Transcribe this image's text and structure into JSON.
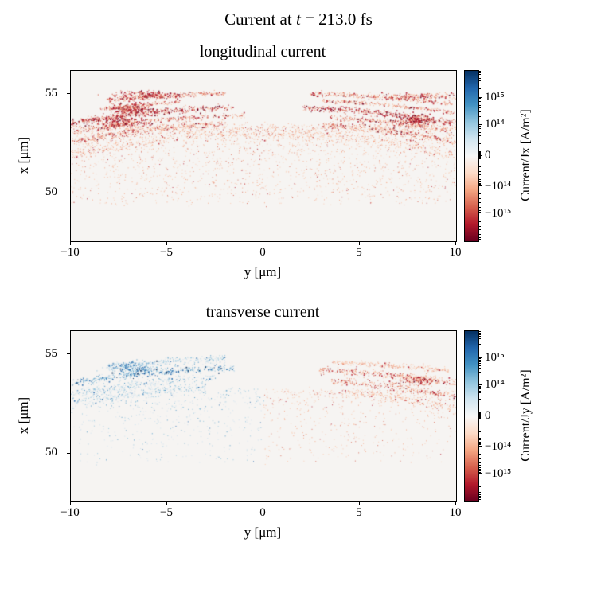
{
  "figure": {
    "title": {
      "pre": "Current at ",
      "var": "t",
      "post": " = 213.0 fs"
    },
    "background": "#ffffff"
  },
  "palettes": {
    "red": [
      "#fbc9ae",
      "#f4a582",
      "#d6604d",
      "#b2182b",
      "#67001f"
    ],
    "blue": [
      "#cfe3f0",
      "#92c5de",
      "#4393c3",
      "#2166ac",
      "#053061"
    ],
    "shadeWeights": {
      "light": [
        0.5,
        0.34,
        0.12,
        0.04,
        0
      ],
      "mid": [
        0.2,
        0.34,
        0.28,
        0.15,
        0.03
      ],
      "dark": [
        0.07,
        0.2,
        0.33,
        0.3,
        0.1
      ]
    }
  },
  "chart_data": [
    {
      "type": "scatter",
      "title": "longitudinal current",
      "xlabel": "y [μm]",
      "ylabel": "x [μm]",
      "xlim": [
        -10,
        10
      ],
      "ylim": [
        47.6,
        56.2
      ],
      "xticks": [
        -10,
        -5,
        0,
        5,
        10
      ],
      "xtick_labels": [
        "−10",
        "−5",
        "0",
        "5",
        "10"
      ],
      "yticks": [
        55,
        50
      ],
      "ytick_labels": [
        "55",
        "50"
      ],
      "plot_bg": "#f6f4f2",
      "grid": false,
      "colorbar": {
        "label": "Current/Jx [A/m²]",
        "scale": "symlog",
        "linthresh": 10000000000000.0,
        "vmax": 1e+16,
        "tick_values": [
          1000000000000000.0,
          100000000000000.0,
          0,
          -100000000000000.0,
          -1000000000000000.0
        ],
        "tick_labels": [
          "10¹⁵",
          "10¹⁴",
          "0",
          "−10¹⁴",
          "−10¹⁵"
        ],
        "cmap": [
          "#053061",
          "#2166ac",
          "#4393c3",
          "#92c5de",
          "#d1e5f0",
          "#f7f7f7",
          "#fddbc7",
          "#f4a582",
          "#d6604d",
          "#b2182b",
          "#67001f"
        ]
      },
      "features": [
        {
          "type": "band",
          "v0": 55.1,
          "curv": 0.55,
          "sigma": 0.06,
          "n": 650,
          "segs": [
            [
              -8.2,
              -2.0
            ],
            [
              2.4,
              9.8
            ]
          ],
          "shade": "mid",
          "palette": "red"
        },
        {
          "type": "band",
          "v0": 54.78,
          "curv": 0.7,
          "sigma": 0.05,
          "n": 400,
          "segs": [
            [
              -8.5,
              -4.3
            ],
            [
              3.0,
              9.9
            ]
          ],
          "shade": "mid",
          "palette": "red"
        },
        {
          "type": "band",
          "v0": 54.38,
          "curv": 0.8,
          "sigma": 0.08,
          "n": 850,
          "segs": [
            [
              -10,
              -1.6
            ],
            [
              2.0,
              10
            ]
          ],
          "shade": "dark",
          "palette": "red"
        },
        {
          "type": "band",
          "v0": 53.98,
          "curv": 0.85,
          "sigma": 0.07,
          "n": 550,
          "segs": [
            [
              -10,
              -1.0
            ],
            [
              3.4,
              10
            ]
          ],
          "shade": "mid",
          "palette": "red"
        },
        {
          "type": "band",
          "v0": 53.58,
          "curv": 0.95,
          "sigma": 0.1,
          "n": 750,
          "segs": [
            [
              -10,
              -2.0
            ],
            [
              3.0,
              10
            ]
          ],
          "shade": "mid",
          "palette": "red"
        },
        {
          "type": "band",
          "v0": 53.05,
          "curv": 1.1,
          "sigma": 0.16,
          "n": 600,
          "segs": [
            [
              -10,
              10
            ]
          ],
          "shade": "light",
          "palette": "red"
        },
        {
          "type": "blob",
          "h": -6.9,
          "v": 54.32,
          "sh": 0.55,
          "sv": 0.13,
          "n": 320,
          "shade": "dark",
          "palette": "red"
        },
        {
          "type": "blob",
          "h": -7.4,
          "v": 53.62,
          "sh": 0.8,
          "sv": 0.15,
          "n": 260,
          "shade": "dark",
          "palette": "red"
        },
        {
          "type": "blob",
          "h": 7.9,
          "v": 53.72,
          "sh": 0.55,
          "sv": 0.13,
          "n": 220,
          "shade": "dark",
          "palette": "red"
        },
        {
          "type": "blob",
          "h": -6.2,
          "v": 55.02,
          "sh": 0.8,
          "sv": 0.1,
          "n": 180,
          "shade": "dark",
          "palette": "red"
        },
        {
          "type": "blob",
          "h": 8.2,
          "v": 54.95,
          "sh": 1.3,
          "sv": 0.08,
          "n": 200,
          "shade": "mid",
          "palette": "red"
        },
        {
          "type": "diffuse",
          "n": 2400,
          "vtop": 53.4,
          "depth": 3.9,
          "shade": "light",
          "palette": "red"
        }
      ]
    },
    {
      "type": "scatter",
      "title": "transverse current",
      "xlabel": "y [μm]",
      "ylabel": "x [μm]",
      "xlim": [
        -10,
        10
      ],
      "ylim": [
        47.6,
        56.2
      ],
      "xticks": [
        -10,
        -5,
        0,
        5,
        10
      ],
      "xtick_labels": [
        "−10",
        "−5",
        "0",
        "5",
        "10"
      ],
      "yticks": [
        55,
        50
      ],
      "ytick_labels": [
        "55",
        "50"
      ],
      "plot_bg": "#f6f4f2",
      "grid": false,
      "colorbar": {
        "label": "Current/Jy [A/m²]",
        "scale": "symlog",
        "linthresh": 10000000000000.0,
        "vmax": 1e+16,
        "tick_values": [
          1000000000000000.0,
          100000000000000.0,
          0,
          -100000000000000.0,
          -1000000000000000.0
        ],
        "tick_labels": [
          "10¹⁵",
          "10¹⁴",
          "0",
          "−10¹⁴",
          "−10¹⁵"
        ],
        "cmap": [
          "#053061",
          "#2166ac",
          "#4393c3",
          "#92c5de",
          "#d1e5f0",
          "#f7f7f7",
          "#fddbc7",
          "#f4a582",
          "#d6604d",
          "#b2182b",
          "#67001f"
        ]
      },
      "features": [
        {
          "type": "band",
          "v0": 54.82,
          "curv": 0.6,
          "sigma": 0.1,
          "n": 300,
          "segs": [
            [
              -8.2,
              -2.0
            ]
          ],
          "shade": "light",
          "palette": "blue"
        },
        {
          "type": "band",
          "v0": 54.38,
          "curv": 0.8,
          "sigma": 0.09,
          "n": 400,
          "segs": [
            [
              -10,
              -1.5
            ]
          ],
          "shade": "mid",
          "palette": "blue"
        },
        {
          "type": "band",
          "v0": 53.92,
          "curv": 0.9,
          "sigma": 0.12,
          "n": 300,
          "segs": [
            [
              -10,
              -2.5
            ]
          ],
          "shade": "light",
          "palette": "blue"
        },
        {
          "type": "band",
          "v0": 53.5,
          "curv": 1.0,
          "sigma": 0.14,
          "n": 240,
          "segs": [
            [
              -10,
              -3.0
            ]
          ],
          "shade": "light",
          "palette": "blue"
        },
        {
          "type": "blob",
          "h": -6.6,
          "v": 54.35,
          "sh": 0.7,
          "sv": 0.14,
          "n": 240,
          "shade": "mid",
          "palette": "blue"
        },
        {
          "type": "band",
          "v0": 54.72,
          "curv": 0.55,
          "sigma": 0.07,
          "n": 240,
          "segs": [
            [
              3.5,
              9.6
            ]
          ],
          "shade": "light",
          "palette": "red"
        },
        {
          "type": "band",
          "v0": 54.32,
          "curv": 0.75,
          "sigma": 0.08,
          "n": 320,
          "segs": [
            [
              2.8,
              10
            ]
          ],
          "shade": "mid",
          "palette": "red"
        },
        {
          "type": "band",
          "v0": 53.82,
          "curv": 0.9,
          "sigma": 0.1,
          "n": 280,
          "segs": [
            [
              3.5,
              10
            ]
          ],
          "shade": "mid",
          "palette": "red"
        },
        {
          "type": "band",
          "v0": 53.3,
          "curv": 1.0,
          "sigma": 0.13,
          "n": 200,
          "segs": [
            [
              4.0,
              10
            ]
          ],
          "shade": "light",
          "palette": "red"
        },
        {
          "type": "blob",
          "h": 7.9,
          "v": 53.75,
          "sh": 0.6,
          "sv": 0.13,
          "n": 180,
          "shade": "mid",
          "palette": "red"
        },
        {
          "type": "diffuse",
          "n": 1100,
          "vtop": 53.2,
          "depth": 3.6,
          "shade": "light",
          "palette": "signed"
        }
      ]
    }
  ]
}
